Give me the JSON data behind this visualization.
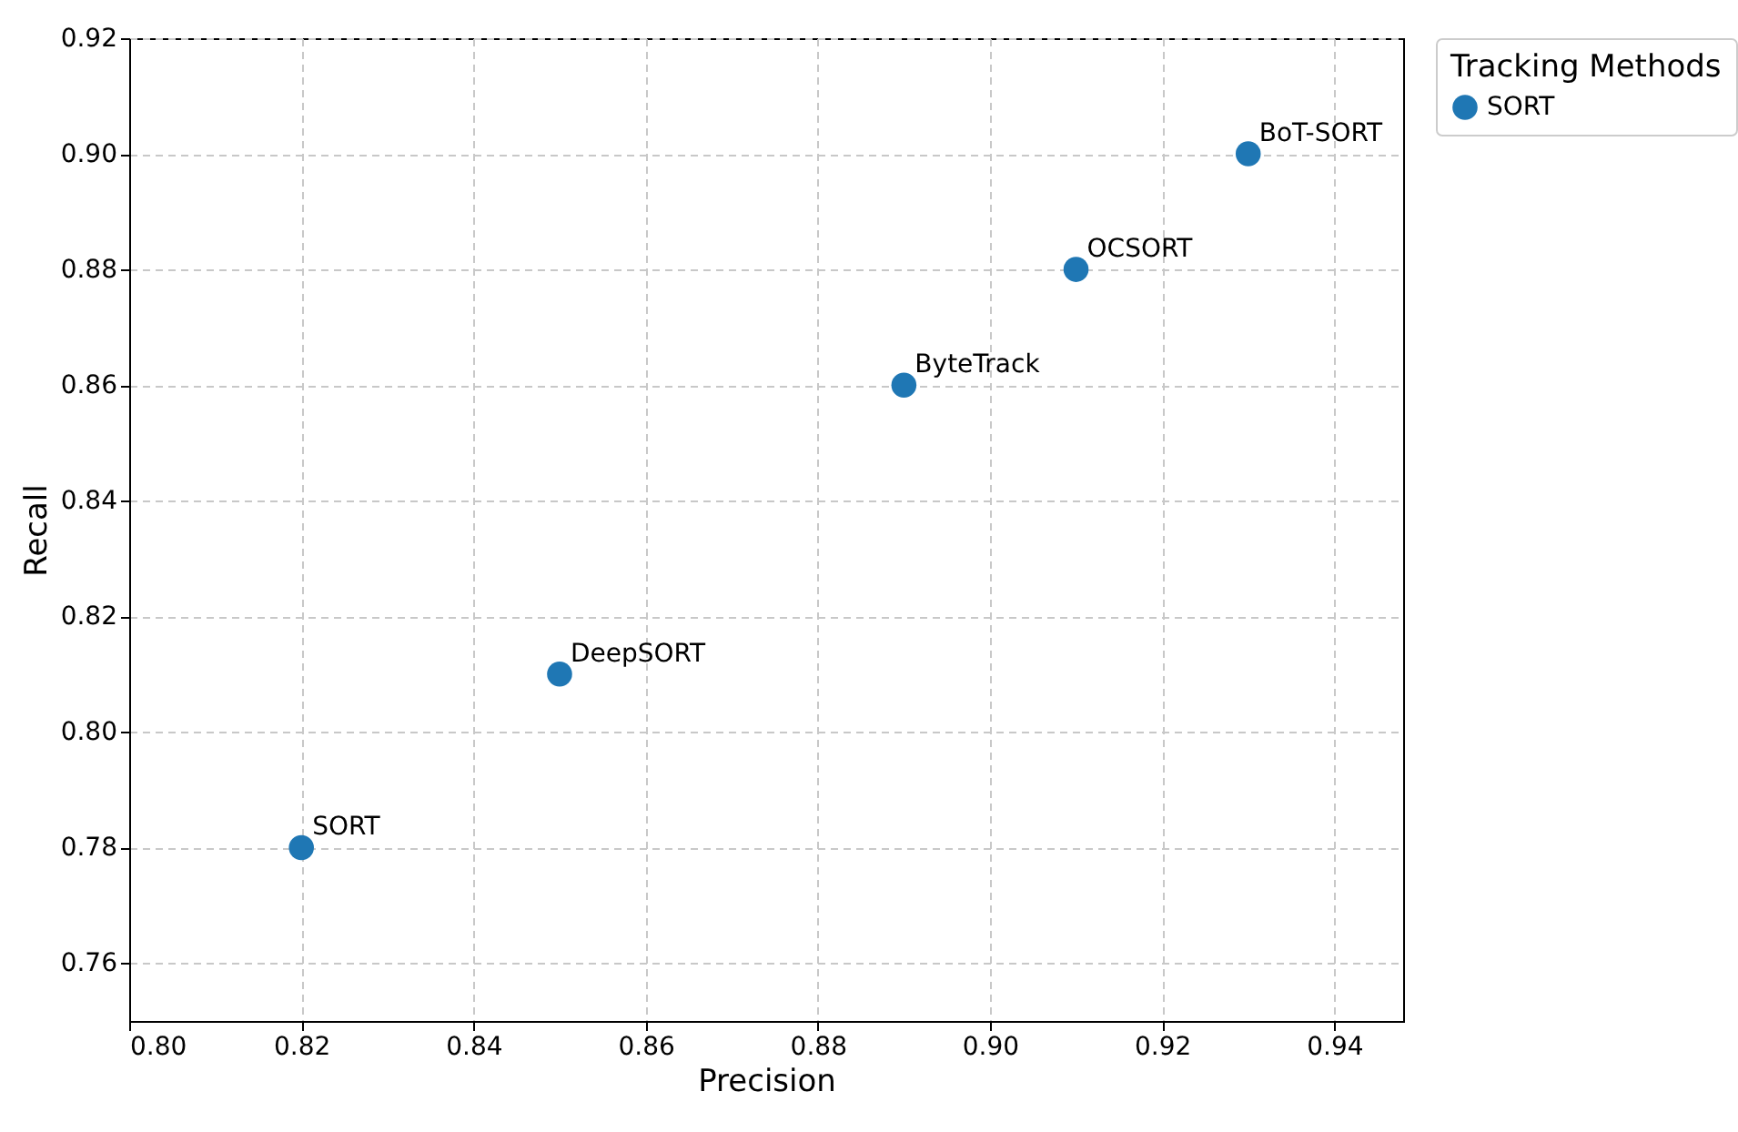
{
  "chart_data": {
    "type": "scatter",
    "xlabel": "Precision",
    "ylabel": "Recall",
    "legend_title": "Tracking Methods",
    "x": [
      0.82,
      0.85,
      0.89,
      0.91,
      0.93
    ],
    "series": [
      {
        "name": "SORT",
        "color": "#1f77b4",
        "values": [
          0.78,
          0.81,
          0.86,
          0.88,
          0.9
        ]
      }
    ],
    "annotations": [
      {
        "text": "SORT",
        "x": 0.82,
        "y": 0.78
      },
      {
        "text": "DeepSORT",
        "x": 0.85,
        "y": 0.81
      },
      {
        "text": "ByteTrack",
        "x": 0.89,
        "y": 0.86
      },
      {
        "text": "OCSORT",
        "x": 0.91,
        "y": 0.88
      },
      {
        "text": "BoT-SORT",
        "x": 0.93,
        "y": 0.9
      }
    ],
    "xlim": [
      0.8,
      0.948
    ],
    "ylim": [
      0.75,
      0.92
    ],
    "xticks": [
      {
        "value": 0.8,
        "label": "0.80"
      },
      {
        "value": 0.82,
        "label": "0.82"
      },
      {
        "value": 0.84,
        "label": "0.84"
      },
      {
        "value": 0.86,
        "label": "0.86"
      },
      {
        "value": 0.88,
        "label": "0.88"
      },
      {
        "value": 0.9,
        "label": "0.90"
      },
      {
        "value": 0.92,
        "label": "0.92"
      },
      {
        "value": 0.94,
        "label": "0.94"
      }
    ],
    "yticks": [
      {
        "value": 0.76,
        "label": "0.76"
      },
      {
        "value": 0.78,
        "label": "0.78"
      },
      {
        "value": 0.8,
        "label": "0.80"
      },
      {
        "value": 0.82,
        "label": "0.82"
      },
      {
        "value": 0.84,
        "label": "0.84"
      },
      {
        "value": 0.86,
        "label": "0.86"
      },
      {
        "value": 0.88,
        "label": "0.88"
      },
      {
        "value": 0.9,
        "label": "0.90"
      },
      {
        "value": 0.92,
        "label": "0.92"
      }
    ],
    "grid": true,
    "legend": "top right",
    "marker": "circle"
  }
}
